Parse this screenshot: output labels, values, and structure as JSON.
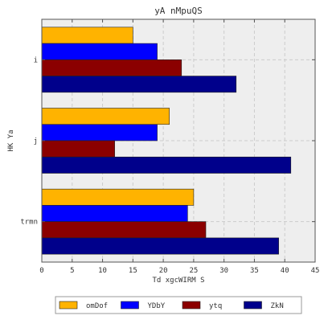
{
  "chart_data": {
    "type": "bar",
    "orientation": "horizontal",
    "title": "yA nMpuQS",
    "xlabel": "Td  xgcWIRM S",
    "ylabel": "HK Ya",
    "categories": [
      "i",
      "j",
      "trmn"
    ],
    "xlim": [
      0,
      45
    ],
    "x_ticks": [
      0,
      5,
      10,
      15,
      20,
      25,
      30,
      35,
      40,
      45
    ],
    "grid": true,
    "legend_position": "bottom-outside",
    "series": [
      {
        "name": "omDof",
        "color": "#ffb300",
        "values": [
          15,
          21,
          25
        ]
      },
      {
        "name": "YDbY",
        "color": "#0000ff",
        "values": [
          19,
          19,
          24
        ]
      },
      {
        "name": "ytq",
        "color": "#8b0000",
        "values": [
          23,
          12,
          27
        ]
      },
      {
        "name": "ZkN",
        "color": "#00008b",
        "values": [
          32,
          41,
          39
        ]
      }
    ]
  }
}
